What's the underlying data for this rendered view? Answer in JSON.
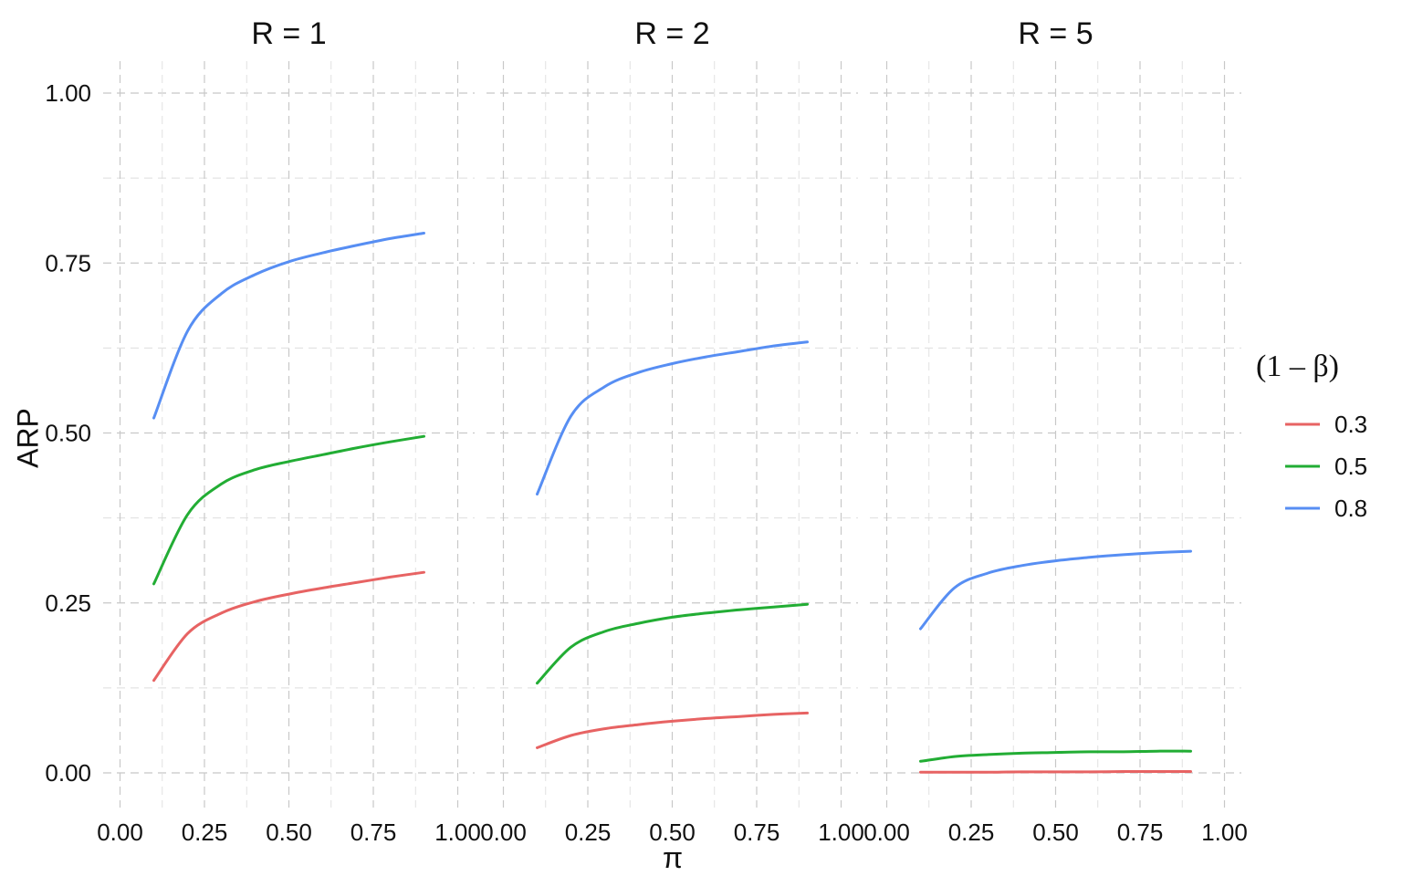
{
  "chart_data": {
    "type": "line",
    "facet_variable": "R",
    "panels": [
      {
        "label": "R = 1",
        "series": [
          {
            "name": "0.3",
            "x": [
              0.1,
              0.2,
              0.3,
              0.4,
              0.5,
              0.6,
              0.7,
              0.8,
              0.9
            ],
            "y": [
              0.136,
              0.205,
              0.235,
              0.252,
              0.263,
              0.272,
              0.28,
              0.288,
              0.295
            ]
          },
          {
            "name": "0.5",
            "x": [
              0.1,
              0.2,
              0.3,
              0.4,
              0.5,
              0.6,
              0.7,
              0.8,
              0.9
            ],
            "y": [
              0.278,
              0.38,
              0.425,
              0.446,
              0.458,
              0.468,
              0.478,
              0.487,
              0.495
            ]
          },
          {
            "name": "0.8",
            "x": [
              0.1,
              0.2,
              0.3,
              0.4,
              0.5,
              0.6,
              0.7,
              0.8,
              0.9
            ],
            "y": [
              0.522,
              0.65,
              0.705,
              0.733,
              0.752,
              0.765,
              0.776,
              0.786,
              0.794
            ]
          }
        ]
      },
      {
        "label": "R = 2",
        "series": [
          {
            "name": "0.3",
            "x": [
              0.1,
              0.2,
              0.3,
              0.4,
              0.5,
              0.6,
              0.7,
              0.8,
              0.9
            ],
            "y": [
              0.037,
              0.055,
              0.065,
              0.071,
              0.076,
              0.08,
              0.083,
              0.086,
              0.088
            ]
          },
          {
            "name": "0.5",
            "x": [
              0.1,
              0.2,
              0.3,
              0.4,
              0.5,
              0.6,
              0.7,
              0.8,
              0.9
            ],
            "y": [
              0.132,
              0.185,
              0.208,
              0.22,
              0.229,
              0.235,
              0.24,
              0.244,
              0.248
            ]
          },
          {
            "name": "0.8",
            "x": [
              0.1,
              0.2,
              0.3,
              0.4,
              0.5,
              0.6,
              0.7,
              0.8,
              0.9
            ],
            "y": [
              0.41,
              0.525,
              0.568,
              0.589,
              0.602,
              0.612,
              0.62,
              0.628,
              0.634
            ]
          }
        ]
      },
      {
        "label": "R = 5",
        "series": [
          {
            "name": "0.3",
            "x": [
              0.1,
              0.2,
              0.3,
              0.4,
              0.5,
              0.6,
              0.7,
              0.8,
              0.9
            ],
            "y": [
              0.001,
              0.001,
              0.001,
              0.0015,
              0.0015,
              0.0015,
              0.002,
              0.002,
              0.002
            ]
          },
          {
            "name": "0.5",
            "x": [
              0.1,
              0.2,
              0.3,
              0.4,
              0.5,
              0.6,
              0.7,
              0.8,
              0.9
            ],
            "y": [
              0.017,
              0.024,
              0.027,
              0.029,
              0.03,
              0.031,
              0.031,
              0.032,
              0.032
            ]
          },
          {
            "name": "0.8",
            "x": [
              0.1,
              0.2,
              0.3,
              0.4,
              0.5,
              0.6,
              0.7,
              0.8,
              0.9
            ],
            "y": [
              0.212,
              0.272,
              0.294,
              0.305,
              0.312,
              0.317,
              0.321,
              0.324,
              0.326
            ]
          }
        ]
      }
    ],
    "xlabel": "π",
    "ylabel": "ARP",
    "xlim": [
      -0.05,
      1.05
    ],
    "ylim": [
      -0.04,
      1.04
    ],
    "x_ticks": [
      "0.00",
      "0.25",
      "0.50",
      "0.75",
      "1.00"
    ],
    "y_ticks": [
      "0.00",
      "0.25",
      "0.50",
      "0.75",
      "1.00"
    ],
    "grid": true,
    "legend": {
      "title": "(1 – β)",
      "position": "right",
      "entries": [
        {
          "label": "0.3",
          "color": "#E76363"
        },
        {
          "label": "0.5",
          "color": "#22AD34"
        },
        {
          "label": "0.8",
          "color": "#578EF3"
        }
      ]
    }
  }
}
